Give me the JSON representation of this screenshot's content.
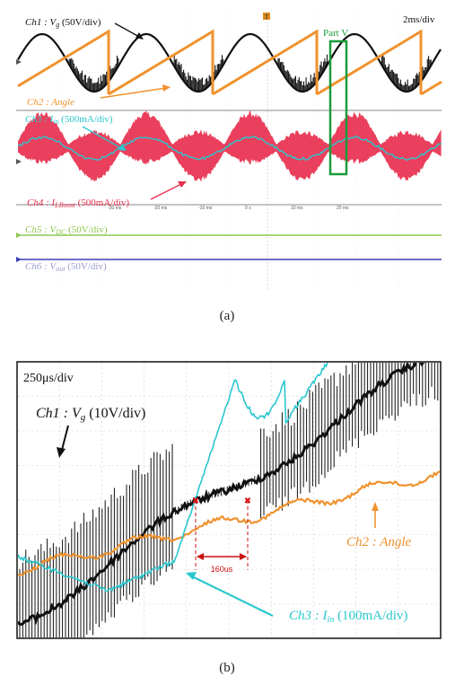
{
  "chart_data": [
    {
      "type": "line",
      "caption": "(a)",
      "timebase": "2ms/div",
      "annotation": "Part V",
      "time_tick_labels": [
        "-30 ms",
        "-20 ms",
        "-10 ms",
        "0 s",
        "10 ms",
        "20 ms"
      ],
      "series": [
        {
          "name": "Ch1 : Vg (50V/div)",
          "label_parts": [
            "Ch1 : ",
            "V",
            "g",
            " (50V/div)"
          ],
          "color": "#111111"
        },
        {
          "name": "Ch2 : Angle",
          "label_parts": [
            "Ch2 : Angle"
          ],
          "color": "#f0922e"
        },
        {
          "name": "Ch3 : Iin (500mA/div)",
          "label_parts": [
            "Ch3 : ",
            "I",
            "in",
            " (500mA/div)"
          ],
          "color": "#2ac7cf"
        },
        {
          "name": "Ch4 : ILBoost (500mA/div)",
          "label_parts": [
            "Ch4 : ",
            "I",
            "LBoost",
            " (500mA/div)"
          ],
          "color": "#e8304f"
        },
        {
          "name": "Ch5 : VDC (50V/div)",
          "label_parts": [
            "Ch5 : ",
            "V",
            "DC",
            " (50V/div)"
          ],
          "color": "#8cc850"
        },
        {
          "name": "Ch6 : Vout (50V/div)",
          "label_parts": [
            "Ch6 : ",
            "V",
            "out",
            " (50V/div)"
          ],
          "color": "#3b3fb8"
        }
      ]
    },
    {
      "type": "line",
      "caption": "(b)",
      "timebase": "250μs/div",
      "interval_label": "160us",
      "series": [
        {
          "name": "Ch1 : Vg (10V/div)",
          "label_parts": [
            "Ch1 : ",
            "V",
            "g",
            " (10V/div)"
          ],
          "color": "#111111"
        },
        {
          "name": "Ch2 : Angle",
          "label_parts": [
            "Ch2 : Angle"
          ],
          "color": "#f0922e"
        },
        {
          "name": "Ch3 : Iin (100mA/div)",
          "label_parts": [
            "Ch3 : ",
            "I",
            "in",
            " (100mA/div)"
          ],
          "color": "#2ac7cf"
        }
      ]
    }
  ]
}
